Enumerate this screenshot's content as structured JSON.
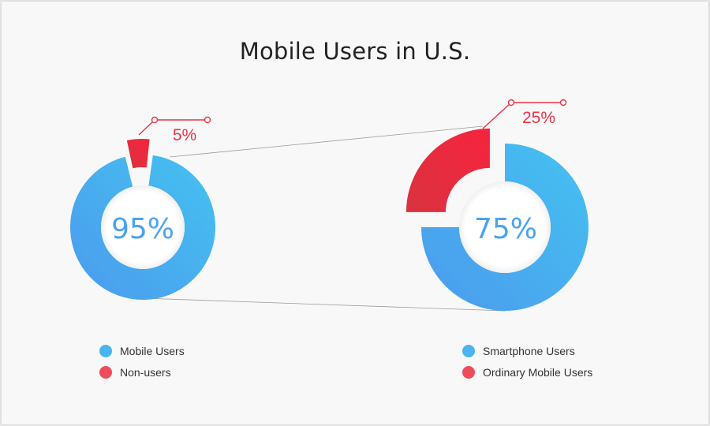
{
  "title": "Mobile Users in U.S.",
  "colors": {
    "blue": "#4ab4ee",
    "blue_dark": "#4aa3ee",
    "red": "#ee3145",
    "red_dark": "#e03342",
    "legend_red": "#ef4c5b",
    "connector": "#9a9a9a"
  },
  "chart_data": [
    {
      "type": "pie",
      "variant": "donut",
      "slices": [
        {
          "label": "Mobile Users",
          "value": 95,
          "center_label": "95%"
        },
        {
          "label": "Non-users",
          "value": 5,
          "callout_label": "5%"
        }
      ],
      "legend": [
        "Mobile Users",
        "Non-users"
      ]
    },
    {
      "type": "pie",
      "variant": "donut",
      "slices": [
        {
          "label": "Smartphone Users",
          "value": 75,
          "center_label": "75%"
        },
        {
          "label": "Ordinary Mobile Users",
          "value": 25,
          "callout_label": "25%"
        }
      ],
      "legend": [
        "Smartphone Users",
        "Ordinary Mobile Users"
      ]
    }
  ]
}
